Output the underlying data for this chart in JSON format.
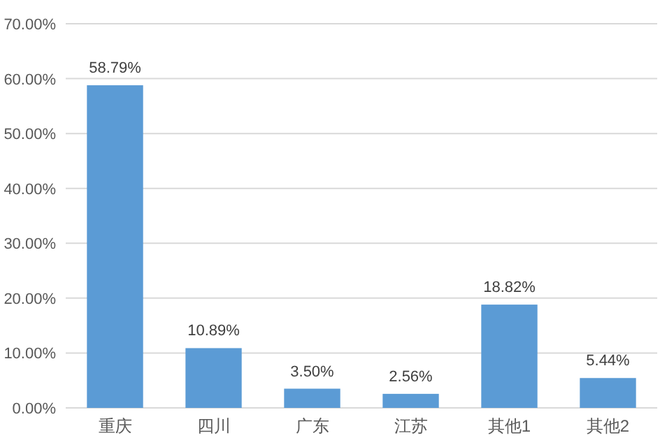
{
  "chart_data": {
    "type": "bar",
    "categories": [
      "重庆",
      "四川",
      "广东",
      "江苏",
      "其他1",
      "其他2"
    ],
    "values": [
      58.79,
      10.89,
      3.5,
      2.56,
      18.82,
      5.44
    ],
    "value_labels": [
      "58.79%",
      "10.89%",
      "3.50%",
      "2.56%",
      "18.82%",
      "5.44%"
    ],
    "color": "#5b9bd5",
    "ylim": [
      0,
      70
    ],
    "yticks": [
      {
        "value": 0,
        "label": "0.00%"
      },
      {
        "value": 10,
        "label": "10.00%"
      },
      {
        "value": 20,
        "label": "20.00%"
      },
      {
        "value": 30,
        "label": "30.00%"
      },
      {
        "value": 40,
        "label": "40.00%"
      },
      {
        "value": 50,
        "label": "50.00%"
      },
      {
        "value": 60,
        "label": "60.00%"
      },
      {
        "value": 70,
        "label": "70.00%"
      }
    ],
    "grid": "y"
  }
}
